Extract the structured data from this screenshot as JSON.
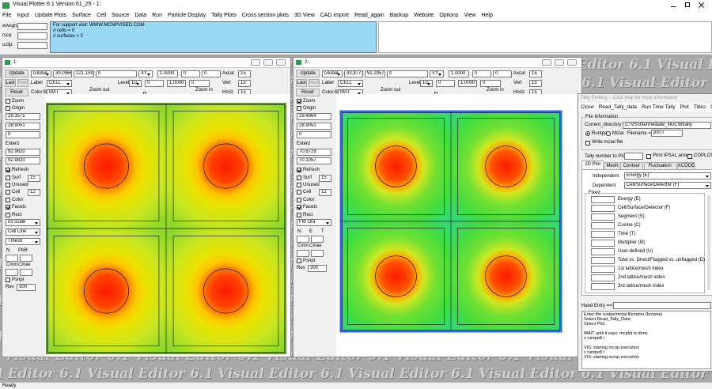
{
  "title_bar": {
    "title": "Visual Plotter 6.1 Version 61_25 - 1:"
  },
  "menu": [
    "File",
    "Input",
    "Update Plots",
    "Surface",
    "Cell",
    "Source",
    "Data",
    "Run",
    "Particle Display",
    "Tally Plots",
    "Cross section plots",
    "3D View",
    "CAD import",
    "Read_again",
    "Backup",
    "Website",
    "Options",
    "View",
    "Help"
  ],
  "toolbar": {
    "fields": [
      "wwsgn:",
      "rsca",
      "uclip:"
    ],
    "info": [
      "For support visit: WWW.MCNPVISED.COM",
      "# cells = 0",
      "# surfaces = 0"
    ]
  },
  "watermark": "Visual Editor 6.1",
  "windows": [
    {
      "title": "1:",
      "buttons": {
        "update": "Update",
        "last": "Last",
        "next": "Next",
        "reset": "Reset"
      },
      "top": {
        "origin_mode": "Global",
        "coords": [
          "30.0966",
          "121.1091",
          "0"
        ],
        "plane": "XY",
        "factors": [
          "1.0000",
          "0",
          "0"
        ],
        "axcal": "Axcal",
        "axcal_value": "15",
        "label": "Label",
        "label_mode": "CELL",
        "level": "Level",
        "level_value": "10",
        "level_fields": [
          "0",
          "1.0000",
          "0"
        ],
        "vert": "Vert",
        "vert_value": "15",
        "color_by": "Color By:",
        "color_mode": "MAT",
        "zoom_out": "Zoom out",
        "zoom_in": "Zoom in",
        "horiz": "Horiz",
        "horiz_value": "15"
      },
      "side": [
        {
          "check": "Zoom",
          "checked": false
        },
        {
          "check": "Origin",
          "checked": false
        },
        {
          "field": "29.3575"
        },
        {
          "field": "28.9051"
        },
        {
          "field": "0"
        },
        {
          "text": "Extent"
        },
        {
          "field": "92.9820"
        },
        {
          "field": "92.9820"
        },
        {
          "check": "Refresh",
          "checked": true
        },
        {
          "check": "Surf",
          "checked": false,
          "field": "15"
        },
        {
          "check": "Unused",
          "checked": false
        },
        {
          "check": "Cell",
          "checked": false,
          "field": "12"
        },
        {
          "check": "Color",
          "checked": false
        },
        {
          "check": "Facets",
          "checked": true
        },
        {
          "check": "Rect",
          "checked": false
        },
        {
          "select": "no scale"
        },
        {
          "select": "Cell Line"
        },
        {
          "select": "Tmesh"
        },
        {
          "labels": [
            "N",
            "PAR"
          ]
        },
        {
          "labels": [
            "Cmin",
            "Cmax"
          ]
        },
        {
          "check": "Psript",
          "checked": false
        },
        {
          "text": "Res",
          "field": "300"
        }
      ]
    },
    {
      "title": "2:",
      "buttons": {
        "update": "Update",
        "last": "Last",
        "next": "Next",
        "reset": "Reset"
      },
      "top": {
        "origin_mode": "Global",
        "coords": [
          "33.8771",
          "91.2957",
          "0"
        ],
        "plane": "XY",
        "factors": [
          "1.0000",
          "0",
          "0"
        ],
        "axcal": "Axcal",
        "axcal_value": "15",
        "label": "Label",
        "label_mode": "CELL",
        "level": "Level",
        "level_value": "10",
        "level_fields": [
          "0",
          "1.0000",
          "0"
        ],
        "vert": "Vert",
        "vert_value": "15",
        "color_by": "Color By:",
        "color_mode": "MAT",
        "zoom_out": "Zoom out",
        "zoom_in": "Zoom in",
        "horiz": "Horiz",
        "horiz_value": "15"
      },
      "side": [
        {
          "check": "Zoom",
          "checked": true
        },
        {
          "check": "Origin",
          "checked": false
        },
        {
          "field": "29.4964"
        },
        {
          "field": "28.9051"
        },
        {
          "field": "0"
        },
        {
          "text": "Extent"
        },
        {
          "field": "70.8729"
        },
        {
          "field": "70.1057"
        },
        {
          "check": "Refresh",
          "checked": true
        },
        {
          "check": "Surf",
          "checked": false,
          "field": "15"
        },
        {
          "check": "Unused",
          "checked": false
        },
        {
          "check": "Cell",
          "checked": false,
          "field": "12"
        },
        {
          "check": "Color",
          "checked": false
        },
        {
          "check": "Facets",
          "checked": true
        },
        {
          "check": "Rect",
          "checked": false
        },
        {
          "select": "FM Ora"
        },
        {
          "labels": [
            "N",
            "E",
            "T"
          ]
        },
        {
          "labels": [
            "Cmin",
            "Cmax"
          ]
        },
        {
          "check": "Psript",
          "checked": false
        },
        {
          "text": "Res",
          "field": "300"
        }
      ]
    }
  ],
  "tally": {
    "title": "Tally Plotting -- Click help for more information",
    "menu": [
      "Close",
      "Read_Tally_data",
      "Run Time Tally",
      "Plot",
      "Titles",
      "Options"
    ],
    "file_info": {
      "group": "File Information",
      "dir_label": "Current_directory =",
      "dir": "C:\\VS\\intermediate_NUCW\\tally",
      "radios": [
        {
          "label": "Runtpe",
          "selected": true
        },
        {
          "label": "Mctal",
          "selected": false
        }
      ],
      "filename_label": "Filename =",
      "filename": "ps0.r",
      "write_mctal": "Write mctal file"
    },
    "tally_number": "Tally number to Plot",
    "print_ipsal": "Print IPSAL array",
    "coplot": "COPLOT",
    "tabs": [
      "2D Plot",
      "Mesh",
      "Contour",
      "Fluctuation",
      "XCODE"
    ],
    "independent_label": "Independent",
    "independent": "Energy (E)",
    "dependent_label": "Dependent",
    "dependent": "Cell/Surface/Detector (F)",
    "fixed_group": "Fixed",
    "fixed": [
      "Energy (E)",
      "Cell/Surface/Detector (F)",
      "Segment (S)",
      "Cosine (C)",
      "Time (T)",
      "Multiplier (M)",
      "User-defined (U)",
      "Total vs. Direct/Flagged vs. unflagged (D)",
      "1st lattice/mesh index",
      "2nd lattice/mesh index",
      "3rd lattice/mesh index"
    ],
    "hand_entry": "Hand Entry ==>",
    "log": [
      "Enter the runtpe/mctal filename (browse)",
      "Select Read_Tally_Data",
      "Select Plot",
      "WAIT until it says: mcplot is done",
      "c runtpe8 r",
      "VIS: starting mcnp execution",
      "c runtpe8 r",
      "VIS: starting mcnp execution"
    ]
  },
  "status": "Ready"
}
